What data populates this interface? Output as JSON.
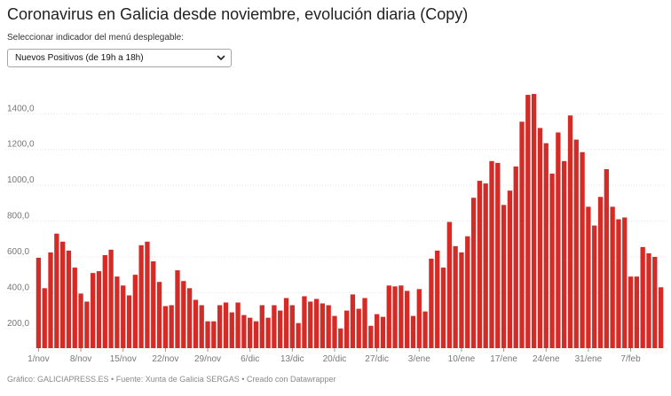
{
  "header": {
    "title": "Coronavirus en Galicia desde noviembre, evolución diaria (Copy)",
    "select_label": "Seleccionar indicador del menú desplegable:",
    "select_value": "Nuevos Positivos (de 19h a 18h)"
  },
  "footer": {
    "source": "Gráfico: GALICIAPRESS.ES • Fuente: Xunta de Galicia SERGAS • Creado con Datawrapper"
  },
  "colors": {
    "bar": "#d52b27",
    "text": "#1d1d1d"
  },
  "chart_data": {
    "type": "bar",
    "title": "Coronavirus en Galicia desde noviembre, evolución diaria (Copy)",
    "xlabel": "",
    "ylabel": "Nuevos Positivos (de 19h a 18h)",
    "ylim": [
      90,
      1540
    ],
    "y_ticks": [
      200,
      400,
      600,
      800,
      1000,
      1200,
      1400
    ],
    "y_tick_labels": [
      "200,0",
      "400,0",
      "600,0",
      "800,0",
      "1000,0",
      "1200,0",
      "1400,0"
    ],
    "x_ticks": [
      {
        "index": 0,
        "label": "1/nov"
      },
      {
        "index": 7,
        "label": "8/nov"
      },
      {
        "index": 14,
        "label": "15/nov"
      },
      {
        "index": 21,
        "label": "22/nov"
      },
      {
        "index": 28,
        "label": "29/nov"
      },
      {
        "index": 35,
        "label": "6/dic"
      },
      {
        "index": 42,
        "label": "13/dic"
      },
      {
        "index": 49,
        "label": "20/dic"
      },
      {
        "index": 56,
        "label": "27/dic"
      },
      {
        "index": 63,
        "label": "3/ene"
      },
      {
        "index": 70,
        "label": "10/ene"
      },
      {
        "index": 77,
        "label": "17/ene"
      },
      {
        "index": 84,
        "label": "24/ene"
      },
      {
        "index": 91,
        "label": "31/ene"
      },
      {
        "index": 98,
        "label": "7/feb"
      }
    ],
    "values": [
      595,
      425,
      625,
      730,
      685,
      635,
      540,
      395,
      350,
      510,
      520,
      610,
      640,
      490,
      440,
      385,
      500,
      665,
      685,
      575,
      460,
      325,
      330,
      525,
      465,
      425,
      360,
      330,
      240,
      240,
      330,
      345,
      290,
      345,
      275,
      260,
      240,
      330,
      260,
      330,
      300,
      370,
      330,
      230,
      380,
      350,
      365,
      340,
      330,
      270,
      200,
      300,
      390,
      310,
      370,
      215,
      280,
      265,
      440,
      435,
      440,
      410,
      270,
      420,
      295,
      590,
      635,
      540,
      795,
      660,
      625,
      715,
      930,
      1025,
      1010,
      1135,
      1125,
      890,
      970,
      1105,
      1355,
      1505,
      1510,
      1320,
      1235,
      1065,
      1295,
      1135,
      1390,
      1255,
      1185,
      880,
      775,
      935,
      1090,
      880,
      810,
      820,
      490,
      490,
      655,
      620,
      600,
      430
    ]
  }
}
